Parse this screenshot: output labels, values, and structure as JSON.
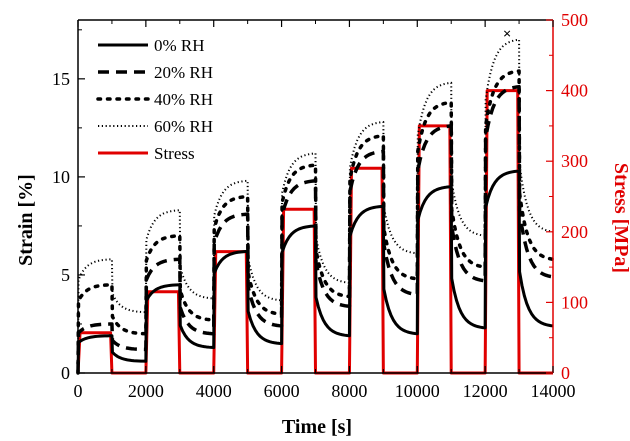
{
  "chart_data": {
    "type": "line",
    "title": "",
    "xlabel": "Time [s]",
    "ylabel_left": "Strain [%]",
    "ylabel_right": "Stress [MPa]",
    "xlim": [
      0,
      14000
    ],
    "ylim_left": [
      0,
      18
    ],
    "ylim_right": [
      0,
      500
    ],
    "x_ticks": [
      0,
      2000,
      4000,
      6000,
      8000,
      10000,
      12000,
      14000
    ],
    "y_ticks_left": [
      0,
      5,
      10,
      15
    ],
    "y_ticks_right": [
      0,
      100,
      200,
      300,
      400,
      500
    ],
    "x_tick_labels": [
      "0",
      "2000",
      "4000",
      "6000",
      "8000",
      "10000",
      "12000",
      "14000"
    ],
    "y_tick_labels_left": [
      "0",
      "5",
      "10",
      "15"
    ],
    "y_tick_labels_right": [
      "0",
      "100",
      "200",
      "300",
      "400",
      "500"
    ],
    "grid": false,
    "legend_position": "top-left",
    "colors": {
      "strain": "#000000",
      "stress": "#e00000"
    },
    "load_cycles": [
      {
        "t_start": 0,
        "t_end": 1000,
        "stress": 57
      },
      {
        "t_start": 2000,
        "t_end": 3000,
        "stress": 115
      },
      {
        "t_start": 4000,
        "t_end": 5000,
        "stress": 172
      },
      {
        "t_start": 6000,
        "t_end": 7000,
        "stress": 232
      },
      {
        "t_start": 8000,
        "t_end": 9000,
        "stress": 290
      },
      {
        "t_start": 10000,
        "t_end": 11000,
        "stress": 350
      },
      {
        "t_start": 12000,
        "t_end": 13000,
        "stress": 400
      }
    ],
    "series": [
      {
        "name": "0% RH",
        "axis": "left",
        "style": "solid",
        "peak_strain": [
          1.9,
          4.5,
          6.2,
          7.5,
          8.5,
          9.5,
          10.3
        ],
        "recovered_strain": [
          0.6,
          1.3,
          1.5,
          1.9,
          2.0,
          2.3,
          2.4,
          2.6
        ]
      },
      {
        "name": "20% RH",
        "axis": "left",
        "style": "dashed",
        "peak_strain": [
          2.5,
          5.8,
          8.1,
          9.8,
          11.3,
          12.6,
          14.6
        ],
        "recovered_strain": [
          1.2,
          2.0,
          2.4,
          3.4,
          4.0,
          4.7,
          4.9,
          5.0
        ]
      },
      {
        "name": "40% RH",
        "axis": "left",
        "style": "dotted",
        "peak_strain": [
          4.5,
          7.0,
          9.0,
          10.6,
          12.1,
          13.8,
          15.4
        ],
        "recovered_strain": [
          2.0,
          2.7,
          3.0,
          3.9,
          4.8,
          5.4,
          5.8,
          5.2
        ]
      },
      {
        "name": "60% RH",
        "axis": "left",
        "style": "fine-dotted",
        "peak_strain": [
          5.8,
          8.3,
          9.8,
          11.2,
          12.8,
          14.8,
          17.0
        ],
        "recovered_strain": [
          3.1,
          3.8,
          3.7,
          4.6,
          6.1,
          7.0,
          7.2
        ]
      },
      {
        "name": "Stress",
        "axis": "right",
        "style": "solid-red"
      }
    ],
    "annotations": [
      {
        "text": "×",
        "x": 12650,
        "y": 17.3,
        "axis": "left"
      }
    ]
  }
}
